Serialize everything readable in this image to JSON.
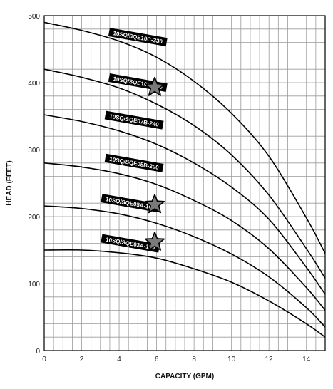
{
  "chart_data": {
    "type": "line",
    "title": "",
    "xlabel": "CAPACITY (GPM)",
    "ylabel": "HEAD (FEET)",
    "xlim": [
      0,
      15
    ],
    "ylim": [
      0,
      500
    ],
    "x_ticks": [
      0,
      2,
      4,
      6,
      8,
      10,
      12,
      14
    ],
    "y_ticks": [
      0,
      100,
      200,
      300,
      400,
      500
    ],
    "grid": true,
    "colors": {
      "line": "#000000",
      "grid": "#9a9a9a",
      "star": "#7a7a7a"
    },
    "series": [
      {
        "name": "10SQ/SQE10C-330",
        "x": [
          0,
          2,
          4,
          6,
          8,
          10,
          12,
          14,
          15
        ],
        "y": [
          490,
          478,
          462,
          438,
          402,
          354,
          290,
          198,
          145
        ],
        "label_at": [
          5,
          468
        ]
      },
      {
        "name": "10SQ/SQE10C-290",
        "x": [
          0,
          2,
          4,
          6,
          8,
          10,
          12,
          14,
          15
        ],
        "y": [
          420,
          408,
          392,
          368,
          336,
          292,
          232,
          152,
          108
        ],
        "label_at": [
          5,
          400
        ]
      },
      {
        "name": "10SQ/SQE07B-240",
        "x": [
          0,
          2,
          4,
          6,
          8,
          10,
          12,
          14,
          15
        ],
        "y": [
          352,
          342,
          328,
          308,
          280,
          244,
          196,
          124,
          84
        ],
        "label_at": [
          4.8,
          344
        ]
      },
      {
        "name": "10SQ/SQE05B-200",
        "x": [
          0,
          2,
          4,
          6,
          8,
          10,
          12,
          14,
          15
        ],
        "y": [
          280,
          274,
          264,
          248,
          224,
          194,
          152,
          94,
          60
        ],
        "label_at": [
          4.8,
          280
        ]
      },
      {
        "name": "10SQ/SQE05A-160",
        "x": [
          0,
          2,
          4,
          6,
          8,
          10,
          12,
          14,
          15
        ],
        "y": [
          216,
          212,
          204,
          190,
          170,
          144,
          110,
          64,
          35
        ],
        "label_at": [
          4.6,
          220
        ]
      },
      {
        "name": "10SQ/SQE03A-110",
        "x": [
          0,
          2,
          4,
          6,
          8,
          10,
          12,
          14,
          15
        ],
        "y": [
          150,
          150,
          146,
          138,
          122,
          102,
          74,
          40,
          20
        ],
        "label_at": [
          4.6,
          160
        ]
      }
    ],
    "markers": [
      {
        "shape": "star",
        "x": 5.9,
        "y": 393
      },
      {
        "shape": "star",
        "x": 5.9,
        "y": 218
      },
      {
        "shape": "star",
        "x": 5.9,
        "y": 162
      }
    ]
  }
}
